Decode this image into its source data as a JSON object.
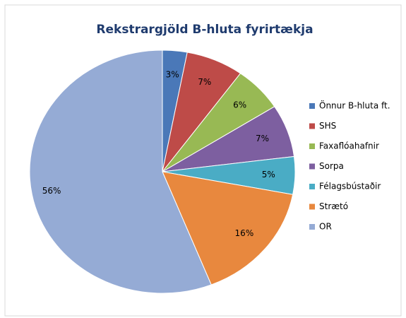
{
  "chart_data": {
    "type": "pie",
    "title": "Rekstrargjöld B-hluta fyrirtækja",
    "categories": [
      "Önnur B-hluta ft.",
      "SHS",
      "Faxaflóahafnir",
      "Sorpa",
      "Félagsbústaðir",
      "Strætó",
      "OR"
    ],
    "values": [
      3,
      7,
      6,
      7,
      5,
      16,
      56
    ],
    "value_labels": [
      "3%",
      "7%",
      "6%",
      "7%",
      "5%",
      "16%",
      "56%"
    ],
    "colors": [
      "#4a78b8",
      "#be4b48",
      "#98b954",
      "#7d5fa0",
      "#4aacc5",
      "#e8883e",
      "#95abd5"
    ],
    "legend": "right"
  }
}
